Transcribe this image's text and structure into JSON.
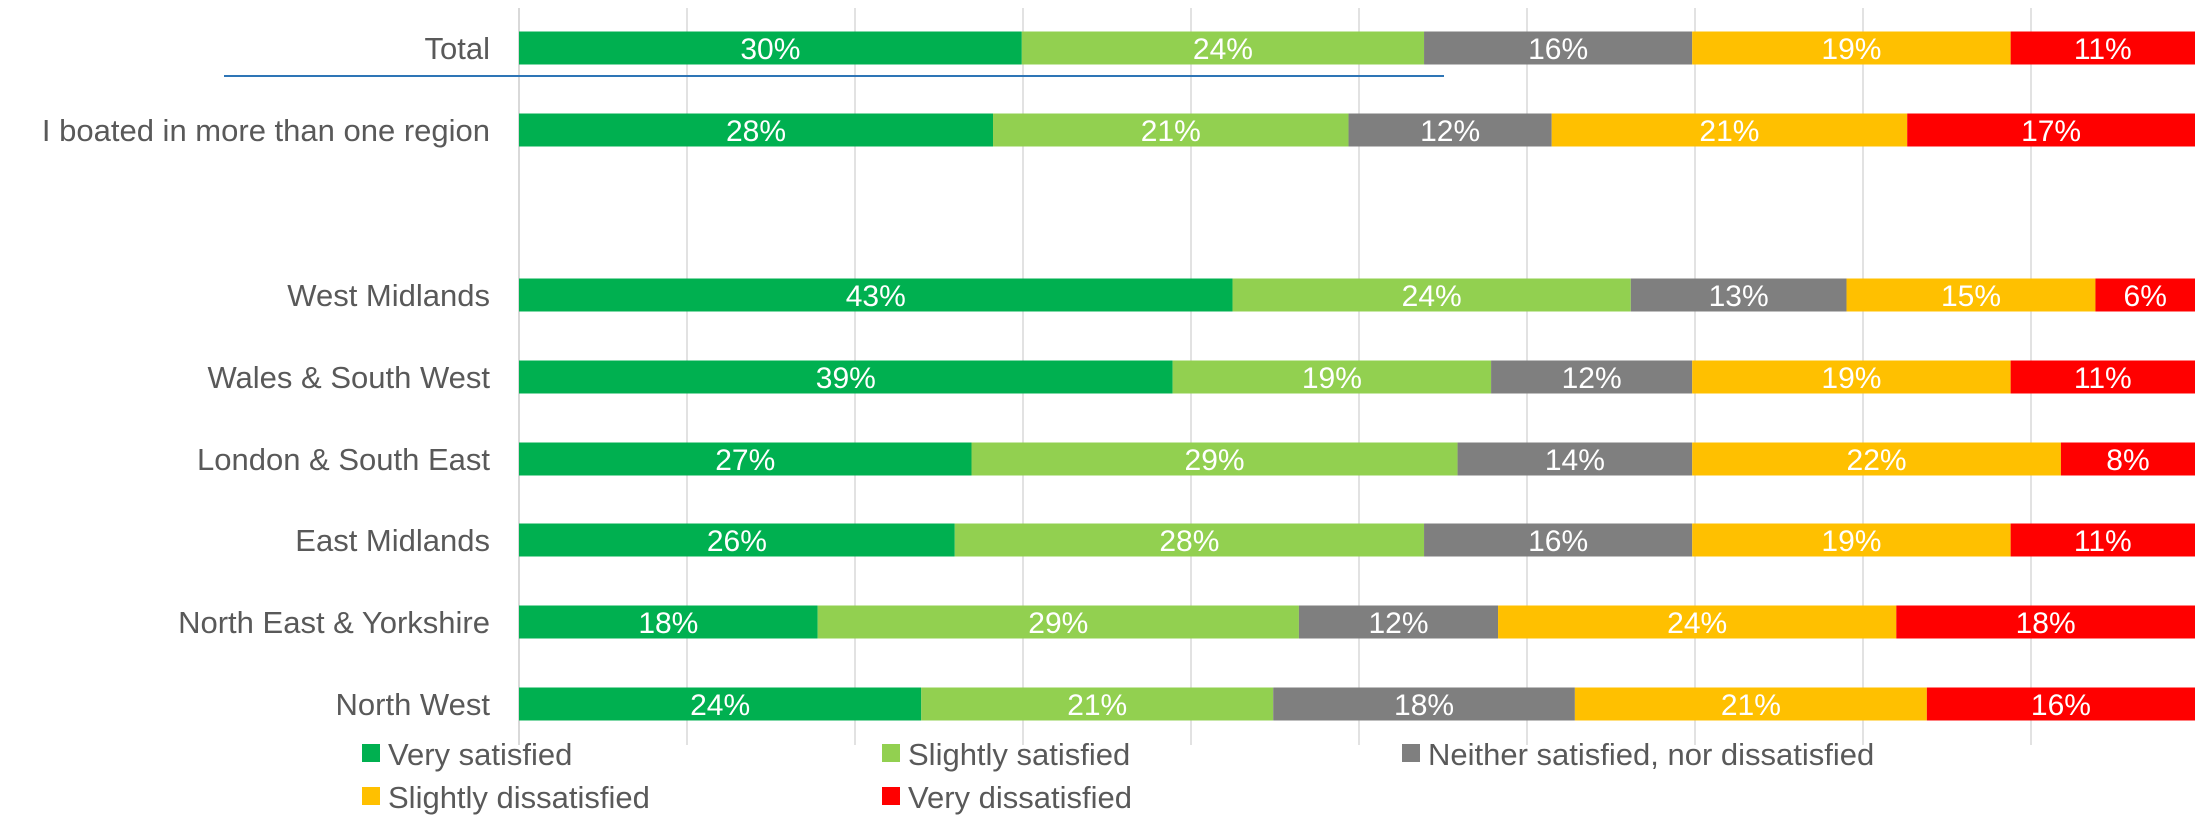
{
  "chart_data": {
    "type": "bar",
    "orientation": "horizontal",
    "stacked": "percent",
    "categories": [
      "Total",
      "I boated in more than one region",
      "West Midlands",
      "Wales & South West",
      "London & South East",
      "East Midlands",
      "North East & Yorkshire",
      "North West"
    ],
    "series": [
      {
        "name": "Very satisfied",
        "color": "#00b050",
        "values": [
          30,
          28,
          43,
          39,
          27,
          26,
          18,
          24
        ]
      },
      {
        "name": "Slightly satisfied",
        "color": "#92d050",
        "values": [
          24,
          21,
          24,
          19,
          29,
          28,
          29,
          21
        ]
      },
      {
        "name": "Neither satisfied, nor dissatisfied",
        "color": "#7f7f7f",
        "values": [
          16,
          12,
          13,
          12,
          14,
          16,
          12,
          18
        ]
      },
      {
        "name": "Slightly dissatisfied",
        "color": "#ffc000",
        "values": [
          19,
          21,
          15,
          19,
          22,
          19,
          24,
          21
        ]
      },
      {
        "name": "Very dissatisfied",
        "color": "#ff0000",
        "values": [
          11,
          17,
          6,
          11,
          8,
          11,
          18,
          16
        ]
      }
    ],
    "data_labels": [
      [
        "30%",
        "24%",
        "16%",
        "19%",
        "11%"
      ],
      [
        "28%",
        "21%",
        "12%",
        "21%",
        "17%"
      ],
      [
        "43%",
        "24%",
        "13%",
        "15%",
        "6%"
      ],
      [
        "39%",
        "19%",
        "12%",
        "19%",
        "11%"
      ],
      [
        "27%",
        "29%",
        "14%",
        "22%",
        "8%"
      ],
      [
        "26%",
        "28%",
        "16%",
        "19%",
        "11%"
      ],
      [
        "18%",
        "29%",
        "12%",
        "24%",
        "18%"
      ],
      [
        "24%",
        "21%",
        "18%",
        "21%",
        "16%"
      ]
    ],
    "xlim": [
      0,
      100
    ],
    "gridlines": "vertical",
    "legend_position": "bottom",
    "separator_below": "Total",
    "separator_color": "#2e75b6"
  }
}
